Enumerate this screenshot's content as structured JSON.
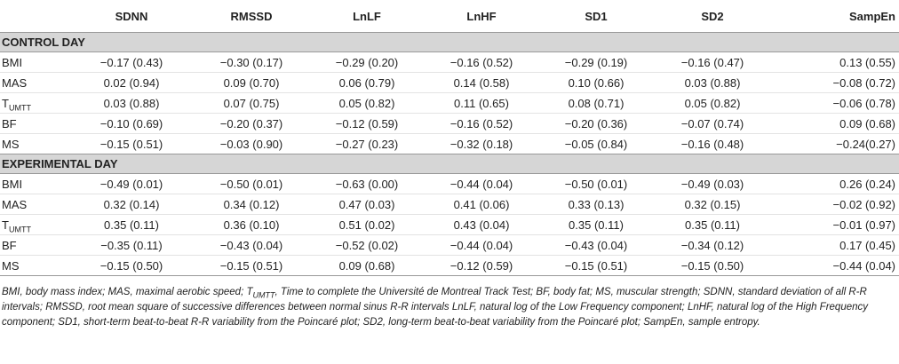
{
  "table": {
    "headers": [
      "",
      "SDNN",
      "RMSSD",
      "LnLF",
      "LnHF",
      "SD1",
      "SD2",
      "SampEn"
    ],
    "sections": [
      {
        "title": "CONTROL DAY",
        "rows": [
          {
            "label": "BMI",
            "label_sub": "",
            "values": [
              "−0.17 (0.43)",
              "−0.30 (0.17)",
              "−0.29 (0.20)",
              "−0.16 (0.52)",
              "−0.29 (0.19)",
              "−0.16 (0.47)",
              "0.13 (0.55)"
            ]
          },
          {
            "label": "MAS",
            "label_sub": "",
            "values": [
              "0.02 (0.94)",
              "0.09 (0.70)",
              "0.06 (0.79)",
              "0.14 (0.58)",
              "0.10 (0.66)",
              "0.03 (0.88)",
              "−0.08 (0.72)"
            ]
          },
          {
            "label": "T",
            "label_sub": "UMTT",
            "values": [
              "0.03 (0.88)",
              "0.07 (0.75)",
              "0.05 (0.82)",
              "0.11 (0.65)",
              "0.08 (0.71)",
              "0.05 (0.82)",
              "−0.06 (0.78)"
            ]
          },
          {
            "label": "BF",
            "label_sub": "",
            "values": [
              "−0.10 (0.69)",
              "−0.20 (0.37)",
              "−0.12 (0.59)",
              "−0.16 (0.52)",
              "−0.20 (0.36)",
              "−0.07 (0.74)",
              "0.09 (0.68)"
            ]
          },
          {
            "label": "MS",
            "label_sub": "",
            "values": [
              "−0.15 (0.51)",
              "−0.03 (0.90)",
              "−0.27 (0.23)",
              "−0.32 (0.18)",
              "−0.05 (0.84)",
              "−0.16 (0.48)",
              "−0.24(0.27)"
            ]
          }
        ]
      },
      {
        "title": "EXPERIMENTAL DAY",
        "rows": [
          {
            "label": "BMI",
            "label_sub": "",
            "values": [
              "−0.49 (0.01)",
              "−0.50 (0.01)",
              "−0.63 (0.00)",
              "−0.44 (0.04)",
              "−0.50 (0.01)",
              "−0.49 (0.03)",
              "0.26 (0.24)"
            ]
          },
          {
            "label": "MAS",
            "label_sub": "",
            "values": [
              "0.32 (0.14)",
              "0.34 (0.12)",
              "0.47 (0.03)",
              "0.41 (0.06)",
              "0.33 (0.13)",
              "0.32 (0.15)",
              "−0.02 (0.92)"
            ]
          },
          {
            "label": "T",
            "label_sub": "UMTT",
            "values": [
              "0.35 (0.11)",
              "0.36 (0.10)",
              "0.51 (0.02)",
              "0.43 (0.04)",
              "0.35 (0.11)",
              "0.35 (0.11)",
              "−0.01 (0.97)"
            ]
          },
          {
            "label": "BF",
            "label_sub": "",
            "values": [
              "−0.35 (0.11)",
              "−0.43 (0.04)",
              "−0.52 (0.02)",
              "−0.44 (0.04)",
              "−0.43 (0.04)",
              "−0.34 (0.12)",
              "0.17 (0.45)"
            ]
          },
          {
            "label": "MS",
            "label_sub": "",
            "values": [
              "−0.15 (0.50)",
              "−0.15 (0.51)",
              "0.09 (0.68)",
              "−0.12 (0.59)",
              "−0.15 (0.51)",
              "−0.15 (0.50)",
              "−0.44 (0.04)"
            ]
          }
        ]
      }
    ]
  },
  "footnote": {
    "before_sub": "BMI, body mass index; MAS, maximal aerobic speed; T",
    "sub": "UMTT",
    "after_sub": ", Time to complete the Université de Montreal Track Test; BF, body fat; MS, muscular strength; SDNN, standard deviation of all R-R intervals; RMSSD, root mean square of successive differences between normal sinus R-R intervals LnLF, natural log of the Low Frequency component; LnHF, natural log of the High Frequency component; SD1, short-term beat-to-beat R-R variability from the Poincaré plot; SD2, long-term beat-to-beat variability from the Poincaré plot; SampEn, sample entropy."
  }
}
